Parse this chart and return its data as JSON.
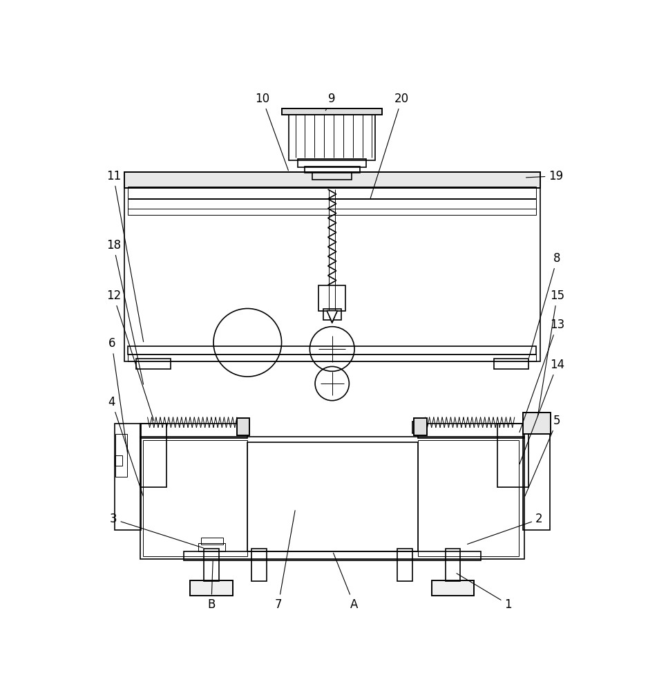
{
  "bg_color": "#ffffff",
  "lc": "#000000",
  "lw": 1.2,
  "tlw": 0.7,
  "fig_w": 9.38,
  "fig_h": 10.0,
  "label_fs": 12
}
